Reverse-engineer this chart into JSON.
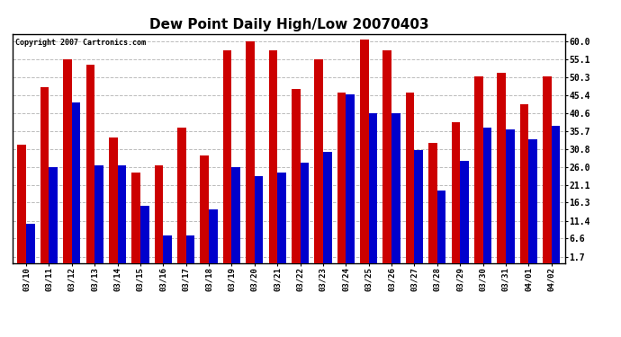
{
  "title": "Dew Point Daily High/Low 20070403",
  "copyright": "Copyright 2007 Cartronics.com",
  "dates": [
    "03/10",
    "03/11",
    "03/12",
    "03/13",
    "03/14",
    "03/15",
    "03/16",
    "03/17",
    "03/18",
    "03/19",
    "03/20",
    "03/21",
    "03/22",
    "03/23",
    "03/24",
    "03/25",
    "03/26",
    "03/27",
    "03/28",
    "03/29",
    "03/30",
    "03/31",
    "04/01",
    "04/02"
  ],
  "highs": [
    32.0,
    47.5,
    55.0,
    53.5,
    34.0,
    24.5,
    26.5,
    36.5,
    29.0,
    57.5,
    60.0,
    57.5,
    47.0,
    55.0,
    46.0,
    60.5,
    57.5,
    46.0,
    32.5,
    38.0,
    50.5,
    51.5,
    43.0,
    50.5
  ],
  "lows": [
    10.5,
    26.0,
    43.5,
    26.5,
    26.5,
    15.5,
    7.5,
    7.5,
    14.5,
    26.0,
    23.5,
    24.5,
    27.0,
    30.0,
    45.5,
    40.5,
    40.5,
    30.5,
    19.5,
    27.5,
    36.5,
    36.0,
    33.5,
    37.0
  ],
  "high_color": "#cc0000",
  "low_color": "#0000cc",
  "bg_color": "#ffffff",
  "grid_color": "#bbbbbb",
  "yticks": [
    1.7,
    6.6,
    11.4,
    16.3,
    21.1,
    26.0,
    30.8,
    35.7,
    40.6,
    45.4,
    50.3,
    55.1,
    60.0
  ],
  "ylim": [
    0,
    62
  ],
  "bar_width": 0.38,
  "title_fontsize": 11
}
